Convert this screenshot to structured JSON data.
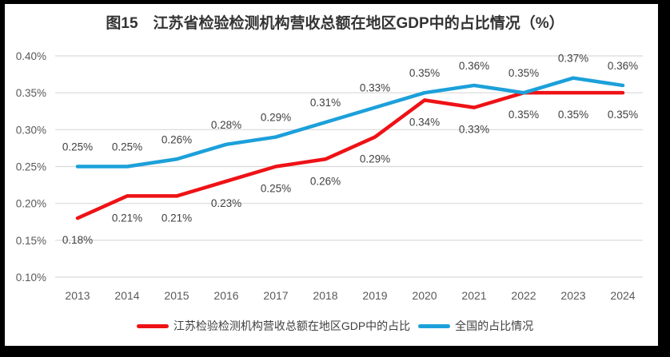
{
  "figure": {
    "frame_color": "#000000",
    "background": "#FFFFFF"
  },
  "chart_data": {
    "type": "line",
    "title": "图15　江苏省检验检测机构营收总额在地区GDP中的占比情况（%）",
    "categories": [
      "2013",
      "2014",
      "2015",
      "2016",
      "2017",
      "2018",
      "2019",
      "2020",
      "2021",
      "2022",
      "2023",
      "2024"
    ],
    "series": [
      {
        "name": "江苏检验检测机构营收总额在地区GDP中的占比",
        "color": "#EE1216",
        "values": [
          0.18,
          0.21,
          0.21,
          0.23,
          0.25,
          0.26,
          0.29,
          0.34,
          0.33,
          0.35,
          0.35,
          0.35
        ],
        "label_position": "below"
      },
      {
        "name": "全国的占比情况",
        "color": "#1CA0DA",
        "values": [
          0.25,
          0.25,
          0.26,
          0.28,
          0.29,
          0.31,
          0.33,
          0.35,
          0.36,
          0.35,
          0.37,
          0.36
        ],
        "label_position": "above"
      }
    ],
    "y_ticks": [
      {
        "value": 0.1,
        "label": "0.10%"
      },
      {
        "value": 0.15,
        "label": "0.15%"
      },
      {
        "value": 0.2,
        "label": "0.20%"
      },
      {
        "value": 0.25,
        "label": "0.25%"
      },
      {
        "value": 0.3,
        "label": "0.30%"
      },
      {
        "value": 0.35,
        "label": "0.35%"
      },
      {
        "value": 0.4,
        "label": "0.40%"
      }
    ],
    "ylim": [
      0.1,
      0.4
    ],
    "value_suffix": "%",
    "grid": true,
    "data_labels": true,
    "legend_position": "bottom"
  },
  "styles": {
    "grid_color": "#D9D9D9",
    "axis_text_color": "#595959",
    "data_label_color": "#3F3F3F",
    "title_color": "#333333",
    "legend_text_color": "#404040"
  }
}
